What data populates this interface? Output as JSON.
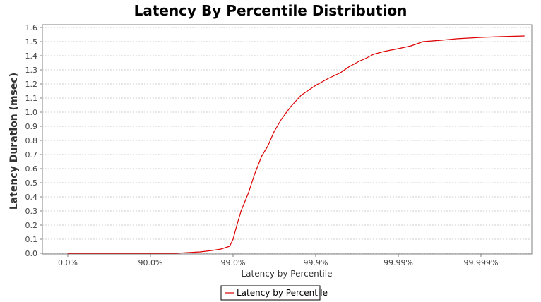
{
  "chart_data": {
    "type": "line",
    "title": "Latency By Percentile Distribution",
    "xlabel": "Latency by Percentile",
    "ylabel": "Latency Duration (msec)",
    "x_scale": "log-percentile",
    "x_ticks": [
      "0.0%",
      "90.0%",
      "99.0%",
      "99.9%",
      "99.99%",
      "99.999%"
    ],
    "y_ticks": [
      "0.0",
      "0.1",
      "0.2",
      "0.3",
      "0.4",
      "0.5",
      "0.6",
      "0.7",
      "0.8",
      "0.9",
      "1.0",
      "1.1",
      "1.2",
      "1.3",
      "1.4",
      "1.5",
      "1.6"
    ],
    "ylim": [
      0,
      1.62
    ],
    "grid": true,
    "legend_position": "bottom",
    "series": [
      {
        "name": "Latency by Percentile",
        "color": "#dd0000",
        "points": [
          {
            "percentile": 0.0,
            "value": 0.0
          },
          {
            "percentile": 50.0,
            "value": 0.0
          },
          {
            "percentile": 90.0,
            "value": 0.0
          },
          {
            "percentile": 95.0,
            "value": 0.0
          },
          {
            "percentile": 97.5,
            "value": 0.01
          },
          {
            "percentile": 98.2,
            "value": 0.02
          },
          {
            "percentile": 98.6,
            "value": 0.03
          },
          {
            "percentile": 98.9,
            "value": 0.05
          },
          {
            "percentile": 99.0,
            "value": 0.1
          },
          {
            "percentile": 99.1,
            "value": 0.2
          },
          {
            "percentile": 99.2,
            "value": 0.3
          },
          {
            "percentile": 99.35,
            "value": 0.43
          },
          {
            "percentile": 99.45,
            "value": 0.56
          },
          {
            "percentile": 99.55,
            "value": 0.69
          },
          {
            "percentile": 99.62,
            "value": 0.76
          },
          {
            "percentile": 99.68,
            "value": 0.86
          },
          {
            "percentile": 99.74,
            "value": 0.95
          },
          {
            "percentile": 99.8,
            "value": 1.04
          },
          {
            "percentile": 99.85,
            "value": 1.12
          },
          {
            "percentile": 99.9,
            "value": 1.19
          },
          {
            "percentile": 99.93,
            "value": 1.24
          },
          {
            "percentile": 99.95,
            "value": 1.28
          },
          {
            "percentile": 99.96,
            "value": 1.32
          },
          {
            "percentile": 99.97,
            "value": 1.36
          },
          {
            "percentile": 99.975,
            "value": 1.38
          },
          {
            "percentile": 99.98,
            "value": 1.41
          },
          {
            "percentile": 99.985,
            "value": 1.43
          },
          {
            "percentile": 99.99,
            "value": 1.45
          },
          {
            "percentile": 99.993,
            "value": 1.47
          },
          {
            "percentile": 99.995,
            "value": 1.5
          },
          {
            "percentile": 99.997,
            "value": 1.51
          },
          {
            "percentile": 99.998,
            "value": 1.52
          },
          {
            "percentile": 99.999,
            "value": 1.53
          },
          {
            "percentile": 99.9994,
            "value": 1.535
          },
          {
            "percentile": 99.9997,
            "value": 1.54
          }
        ]
      }
    ]
  }
}
